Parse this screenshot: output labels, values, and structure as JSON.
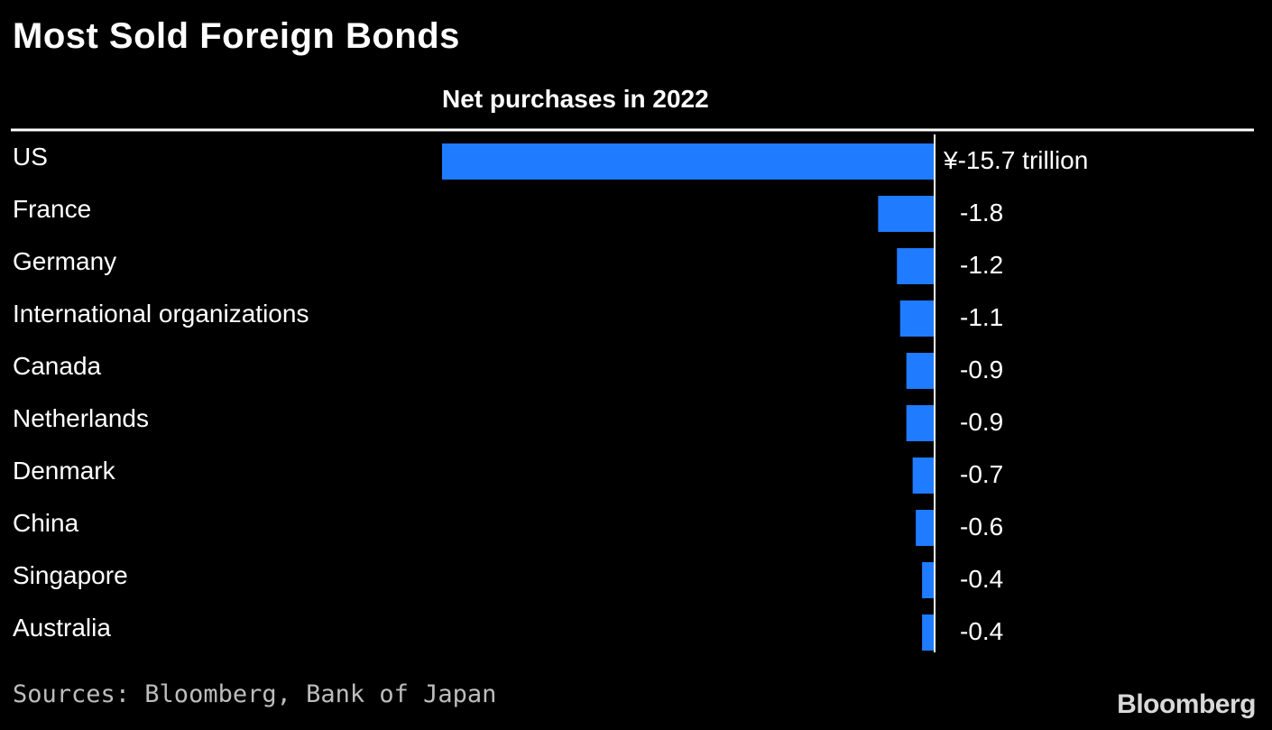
{
  "title": "Most Sold Foreign Bonds",
  "subtitle": "Net purchases in 2022",
  "source": "Sources: Bloomberg, Bank of Japan",
  "logo_text": "Bloomberg",
  "colors": {
    "background": "#000000",
    "bar": "#1f7bff",
    "text": "#ffffff",
    "rule": "#ffffff"
  },
  "chart_data": {
    "type": "bar",
    "orientation": "horizontal",
    "title": "Most Sold Foreign Bonds",
    "subtitle": "Net purchases in 2022",
    "categories": [
      "US",
      "France",
      "Germany",
      "International organizations",
      "Canada",
      "Netherlands",
      "Denmark",
      "China",
      "Singapore",
      "Australia"
    ],
    "values": [
      -15.7,
      -1.8,
      -1.2,
      -1.1,
      -0.9,
      -0.9,
      -0.7,
      -0.6,
      -0.4,
      -0.4
    ],
    "value_labels": [
      "¥-15.7 trillion",
      "-1.8",
      "-1.2",
      "-1.1",
      "-0.9",
      "-0.9",
      "-0.7",
      "-0.6",
      "-0.4",
      "-0.4"
    ],
    "unit": "¥ trillion",
    "xlim": [
      -15.7,
      0
    ],
    "grid": false,
    "legend": "none"
  }
}
